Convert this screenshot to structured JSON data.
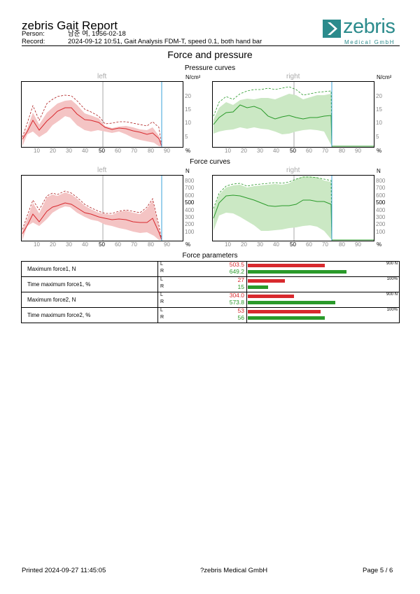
{
  "header": {
    "title": "zebris Gait Report",
    "person_label": "Person:",
    "person_value": "남준 여, 1956-02-18",
    "record_label": "Record:",
    "record_value": "2024-09-12 10:51, Gait Analysis FDM-T, speed 0.1, both hand bar",
    "logo_name": "zebris",
    "logo_sub": "Medical GmbH",
    "logo_icon": "zebris-arrow-logo"
  },
  "section_title": "Force and pressure",
  "pressure": {
    "title": "Pressure curves",
    "left_label": "left",
    "right_label": "right",
    "unit_y": "N/cm²",
    "unit_x": "%",
    "y_ticks": [
      "20",
      "15",
      "10",
      "5"
    ],
    "x_ticks": [
      "10",
      "20",
      "30",
      "40",
      "50",
      "60",
      "70",
      "80",
      "90"
    ]
  },
  "force": {
    "title": "Force curves",
    "left_label": "left",
    "right_label": "right",
    "unit_y": "N",
    "unit_x": "%",
    "y_ticks": [
      "800",
      "700",
      "600",
      "500",
      "400",
      "300",
      "200",
      "100"
    ],
    "x_ticks": [
      "10",
      "20",
      "30",
      "40",
      "50",
      "60",
      "70",
      "80",
      "90"
    ]
  },
  "colors": {
    "left": "#d8292e",
    "right": "#2a9a2a",
    "left_band": "#f4c4c4",
    "right_band": "#cbe8c4",
    "stance_line": "#3aa0d8"
  },
  "params_title": "Force parameters",
  "params": [
    {
      "label": "Maximum force1, N",
      "l": "503.5",
      "r": "649.2",
      "max": "900 N",
      "lf": 0.559,
      "rf": 0.721
    },
    {
      "label": "Time maximum force1, %",
      "l": "27",
      "r": "15",
      "max": "100%",
      "lf": 0.27,
      "rf": 0.15
    },
    {
      "label": "Maximum force2, N",
      "l": "304.0",
      "r": "573.8",
      "max": "900 N",
      "lf": 0.338,
      "rf": 0.638
    },
    {
      "label": "Time maximum force2, %",
      "l": "53",
      "r": "56",
      "max": "100%",
      "lf": 0.53,
      "rf": 0.56
    }
  ],
  "lr_labels": {
    "l": "L",
    "r": "R"
  },
  "footer": {
    "printed": "Printed  2024-09-27 11:45:05",
    "company": "?zebris Medical GmbH",
    "page": "Page  5 / 6"
  }
}
